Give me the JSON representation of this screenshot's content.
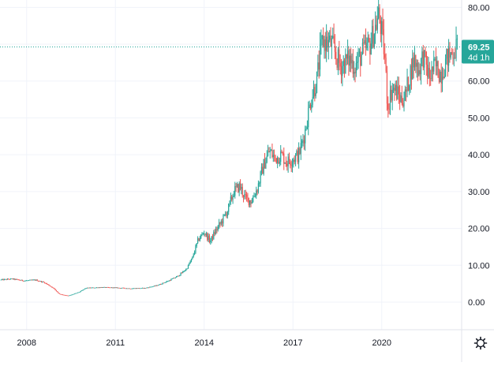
{
  "chart_data": {
    "type": "candlestick",
    "y_ticks": [
      "80.00",
      "70.00",
      "60.00",
      "50.00",
      "40.00",
      "30.00",
      "20.00",
      "10.00",
      "0.00"
    ],
    "y_tick_values": [
      80,
      70,
      60,
      50,
      40,
      30,
      20,
      10,
      0
    ],
    "x_ticks": [
      "2008",
      "2011",
      "2014",
      "2017",
      "2020"
    ],
    "x_tick_years": [
      2008,
      2011,
      2014,
      2017,
      2020
    ],
    "ylim": [
      -7.5,
      82
    ],
    "xlim": [
      2007.1,
      2022.7
    ],
    "grid": true,
    "current_price": {
      "value": 69.25,
      "label": "69.25",
      "countdown": "4d 1h"
    },
    "colors": {
      "up": "#26a69a",
      "down": "#ef5350",
      "label_bg": "#26a69a",
      "grid": "#f0f3fa",
      "text": "#131722"
    },
    "series": [
      {
        "values": [
          [
            2007.1,
            6.0
          ],
          [
            2007.5,
            6.3
          ],
          [
            2007.9,
            5.8
          ],
          [
            2008.3,
            6.0
          ],
          [
            2008.6,
            5.3
          ],
          [
            2008.9,
            3.8
          ],
          [
            2009.1,
            2.2
          ],
          [
            2009.4,
            1.7
          ],
          [
            2009.6,
            2.2
          ],
          [
            2009.8,
            2.8
          ],
          [
            2010.0,
            3.8
          ],
          [
            2010.5,
            4.0
          ],
          [
            2011.0,
            3.9
          ],
          [
            2011.5,
            3.7
          ],
          [
            2012.0,
            3.8
          ],
          [
            2012.4,
            4.5
          ],
          [
            2012.8,
            5.8
          ],
          [
            2013.1,
            7.0
          ],
          [
            2013.4,
            9.0
          ],
          [
            2013.6,
            12.0
          ],
          [
            2013.8,
            17.0
          ],
          [
            2014.0,
            19.0
          ],
          [
            2014.2,
            16.5
          ],
          [
            2014.4,
            19.5
          ],
          [
            2014.6,
            22.0
          ],
          [
            2014.8,
            25.0
          ],
          [
            2015.0,
            30.0
          ],
          [
            2015.2,
            31.5
          ],
          [
            2015.4,
            28.0
          ],
          [
            2015.6,
            27.5
          ],
          [
            2015.8,
            31.0
          ],
          [
            2016.0,
            37.0
          ],
          [
            2016.2,
            41.0
          ],
          [
            2016.4,
            39.0
          ],
          [
            2016.6,
            40.0
          ],
          [
            2016.8,
            38.0
          ],
          [
            2017.0,
            39.0
          ],
          [
            2017.2,
            40.0
          ],
          [
            2017.4,
            46.0
          ],
          [
            2017.6,
            55.0
          ],
          [
            2017.8,
            60.0
          ],
          [
            2017.9,
            66.0
          ],
          [
            2018.0,
            71.0
          ],
          [
            2018.3,
            70.0
          ],
          [
            2018.6,
            64.0
          ],
          [
            2018.9,
            66.0
          ],
          [
            2019.1,
            64.0
          ],
          [
            2019.3,
            67.0
          ],
          [
            2019.6,
            70.0
          ],
          [
            2019.8,
            75.0
          ],
          [
            2019.9,
            78.0
          ],
          [
            2020.0,
            73.0
          ],
          [
            2020.1,
            67.0
          ],
          [
            2020.2,
            53.0
          ],
          [
            2020.35,
            58.0
          ],
          [
            2020.5,
            57.0
          ],
          [
            2020.65,
            55.0
          ],
          [
            2020.8,
            56.0
          ],
          [
            2020.95,
            62.0
          ],
          [
            2021.1,
            66.0
          ],
          [
            2021.25,
            63.0
          ],
          [
            2021.4,
            67.0
          ],
          [
            2021.6,
            61.0
          ],
          [
            2021.8,
            64.0
          ],
          [
            2022.0,
            62.0
          ],
          [
            2022.2,
            66.0
          ],
          [
            2022.4,
            68.0
          ],
          [
            2022.55,
            69.25
          ]
        ]
      }
    ]
  }
}
